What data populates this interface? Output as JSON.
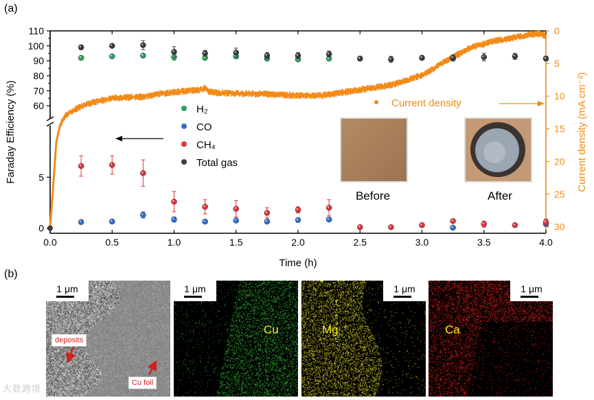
{
  "panel_labels": {
    "a": "(a)",
    "b": "(b)"
  },
  "chart_data": {
    "type": "scatter",
    "xlabel": "Time (h)",
    "ylabel_left": "Faraday Efficiency (%)",
    "ylabel_right": "Current density (mA cm⁻²)",
    "xlim": [
      0,
      4.0
    ],
    "x_ticks": [
      "0.0",
      "0.5",
      "1.0",
      "1.5",
      "2.0",
      "2.5",
      "3.0",
      "3.5",
      "4.0"
    ],
    "y_left_upper_ticks": [
      "60",
      "70",
      "80",
      "90",
      "100",
      "110"
    ],
    "y_left_upper_range": [
      50,
      110
    ],
    "y_left_lower_ticks": [
      "0",
      "5"
    ],
    "y_left_lower_range": [
      -0.5,
      10
    ],
    "y_right_ticks": [
      "0",
      "5",
      "10",
      "15",
      "20",
      "25",
      "30"
    ],
    "y_right_range": [
      0,
      31
    ],
    "x": [
      0.25,
      0.5,
      0.75,
      1.0,
      1.25,
      1.5,
      1.75,
      2.0,
      2.25,
      2.5,
      2.75,
      3.0,
      3.25,
      3.5,
      3.75,
      4.0
    ],
    "series": [
      {
        "name": "H₂",
        "color": "#2ca25f",
        "values": [
          92,
          93,
          93.5,
          92.5,
          92,
          93,
          91.5,
          91,
          91.5,
          null,
          null,
          null,
          91.5,
          null,
          null,
          null
        ],
        "errors": [
          0.5,
          0.5,
          1,
          2,
          1,
          1.5,
          1,
          1,
          1,
          null,
          null,
          null,
          1,
          null,
          null,
          null
        ]
      },
      {
        "name": "CO",
        "color": "#2f6fd1",
        "values": [
          0.6,
          0.65,
          1.3,
          0.85,
          0.65,
          0.75,
          0.65,
          0.8,
          0.85,
          null,
          null,
          null,
          0.05,
          null,
          null,
          0.4
        ],
        "errors": [
          0.2,
          0.2,
          0.3,
          0.25,
          0.2,
          0.2,
          0.2,
          0.2,
          0.2,
          null,
          null,
          null,
          0.1,
          null,
          null,
          0.2
        ]
      },
      {
        "name": "CH₄",
        "color": "#e0353b",
        "values": [
          6.1,
          6.2,
          5.4,
          2.6,
          2.1,
          1.9,
          1.5,
          1.8,
          2.0,
          0.1,
          0.1,
          0.3,
          0.7,
          0.4,
          0.3,
          0.6
        ],
        "errors": [
          1.0,
          0.9,
          1.3,
          1.0,
          0.7,
          0.8,
          0.5,
          0.3,
          0.8,
          0.1,
          0.1,
          0.2,
          0.1,
          0.3,
          0.2,
          0.3
        ]
      },
      {
        "name": "Total gas",
        "color": "#3c3c3c",
        "values": [
          99,
          100,
          100.5,
          96,
          95,
          95.5,
          93.5,
          93.5,
          94.5,
          91.5,
          91,
          92,
          92,
          92.5,
          93,
          91.5
        ],
        "errors": [
          1.5,
          1,
          3,
          3.5,
          2,
          3,
          2,
          2,
          2,
          1.5,
          2,
          1.5,
          2,
          2.5,
          2,
          1.5
        ]
      }
    ],
    "current_density": {
      "name": "Current density",
      "color": "#f28a18",
      "x": [
        0,
        0.02,
        0.05,
        0.08,
        0.12,
        0.2,
        0.3,
        0.4,
        0.5,
        0.6,
        0.75,
        0.9,
        1.0,
        1.1,
        1.2,
        1.25,
        1.28,
        1.35,
        1.5,
        1.75,
        2.0,
        2.2,
        2.4,
        2.6,
        2.75,
        2.9,
        3.0,
        3.1,
        3.2,
        3.3,
        3.4,
        3.5,
        3.6,
        3.7,
        3.8,
        3.9,
        3.96,
        4.0
      ],
      "values": [
        30,
        25,
        17,
        14.5,
        13,
        12,
        11.2,
        10.7,
        10.3,
        10.2,
        10.1,
        9.6,
        9.4,
        9.2,
        9.1,
        8.8,
        9.3,
        9.5,
        9.6,
        9.7,
        9.9,
        9.9,
        9.3,
        8.7,
        8.3,
        7.4,
        6.8,
        5.7,
        4.5,
        3.5,
        2.5,
        2,
        1.5,
        1.2,
        0.8,
        0.5,
        0.4,
        0.8
      ]
    },
    "annotations": {
      "arrow_left_target": "Faraday Efficiency axis",
      "arrow_right_target": "Current density axis"
    }
  },
  "legend": [
    "H₂",
    "CO",
    "CH₄",
    "Total gas"
  ],
  "current_density_label": "Current density",
  "inset": {
    "before": "Before",
    "after": "After"
  },
  "sem": {
    "scale": "1 μm",
    "deposits": "deposits",
    "cu_foil": "Cu foil",
    "elements": [
      {
        "label": "Cu",
        "map_color": "#39c43a",
        "text_color": "#f4ee1c"
      },
      {
        "label": "Mg",
        "map_color": "#e9e32c",
        "text_color": "#f4ee1c"
      },
      {
        "label": "Ca",
        "map_color": "#e7201c",
        "text_color": "#f4ee1c"
      }
    ]
  },
  "watermark": "大数跨境"
}
